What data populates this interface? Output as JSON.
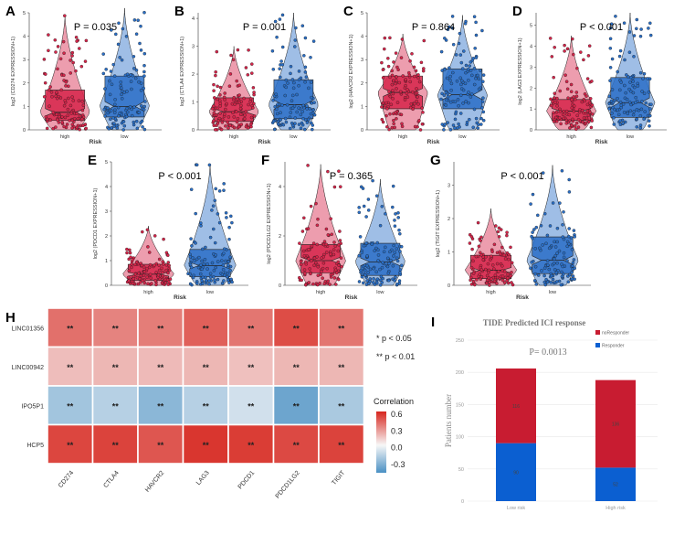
{
  "colors": {
    "high": "#d6254a",
    "low": "#2a6fc7",
    "resp": "#0b5fd1",
    "nonresp": "#c81c31"
  },
  "chart_data": [
    {
      "panel": "A",
      "type": "violin",
      "gene": "CD274",
      "ylabel": "log2 (CD274 EXPRESSION+1)",
      "xlabel": "Risk",
      "categories": [
        "high",
        "low"
      ],
      "pvalue": "P = 0.035",
      "ylim": [
        0,
        5
      ],
      "yticks": [
        "0",
        "1",
        "2",
        "3",
        "4",
        "5"
      ],
      "yticks_v": [
        0,
        1,
        2,
        3,
        4,
        5
      ],
      "stats": [
        {
          "q1": 0.4,
          "med": 0.75,
          "q3": 1.7,
          "max": 4.9
        },
        {
          "q1": 0.55,
          "med": 1.0,
          "q3": 2.3,
          "max": 5.2
        }
      ]
    },
    {
      "panel": "B",
      "type": "violin",
      "gene": "CTLA4",
      "ylabel": "log2 (CTLA4 EXPRESSION+1)",
      "xlabel": "Risk",
      "categories": [
        "high",
        "low"
      ],
      "pvalue": "P = 0.001",
      "ylim": [
        0,
        4.2
      ],
      "yticks": [
        "0",
        "1",
        "2",
        "3",
        "4"
      ],
      "yticks_v": [
        0,
        1,
        2,
        3,
        4
      ],
      "stats": [
        {
          "q1": 0.3,
          "med": 0.65,
          "q3": 1.15,
          "max": 3.0
        },
        {
          "q1": 0.4,
          "med": 0.9,
          "q3": 1.8,
          "max": 4.2
        }
      ]
    },
    {
      "panel": "C",
      "type": "violin",
      "gene": "HAVCR2",
      "ylabel": "log2 (HAVCR2 EXPRESSION+1)",
      "xlabel": "Risk",
      "categories": [
        "high",
        "low"
      ],
      "pvalue": "P = 0.864",
      "ylim": [
        0,
        5
      ],
      "yticks": [
        "0",
        "1",
        "2",
        "3",
        "4",
        "5"
      ],
      "yticks_v": [
        0,
        1,
        2,
        3,
        4,
        5
      ],
      "stats": [
        {
          "q1": 0.9,
          "med": 1.6,
          "q3": 2.3,
          "max": 4.1
        },
        {
          "q1": 0.9,
          "med": 1.5,
          "q3": 2.6,
          "max": 4.9
        }
      ]
    },
    {
      "panel": "D",
      "type": "violin",
      "gene": "LAG3",
      "ylabel": "log2 (LAG3 EXPRESSION+1)",
      "xlabel": "Risk",
      "categories": [
        "high",
        "low"
      ],
      "pvalue": "P < 0.001",
      "ylim": [
        0,
        5.6
      ],
      "yticks": [
        "0",
        "1",
        "2",
        "3",
        "4",
        "5"
      ],
      "yticks_v": [
        0,
        1,
        2,
        3,
        4,
        5
      ],
      "stats": [
        {
          "q1": 0.45,
          "med": 0.9,
          "q3": 1.45,
          "max": 4.5
        },
        {
          "q1": 0.6,
          "med": 1.3,
          "q3": 2.5,
          "max": 5.6
        }
      ]
    },
    {
      "panel": "E",
      "type": "violin",
      "gene": "PDCD1",
      "ylabel": "log2 (PDCD1 EXPRESSION+1)",
      "xlabel": "Risk",
      "categories": [
        "high",
        "low"
      ],
      "pvalue": "P < 0.001",
      "ylim": [
        0,
        5
      ],
      "yticks": [
        "0",
        "1",
        "2",
        "3",
        "4",
        "5"
      ],
      "yticks_v": [
        0,
        1,
        2,
        3,
        4,
        5
      ],
      "stats": [
        {
          "q1": 0.2,
          "med": 0.45,
          "q3": 0.85,
          "max": 2.4
        },
        {
          "q1": 0.35,
          "med": 0.8,
          "q3": 1.45,
          "max": 4.9
        }
      ]
    },
    {
      "panel": "F",
      "type": "violin",
      "gene": "PDCD1LG2",
      "ylabel": "log2 (PDCD1LG2 EXPRESSION+1)",
      "xlabel": "Risk",
      "categories": [
        "high",
        "low"
      ],
      "pvalue": "P = 0.365",
      "ylim": [
        0,
        5
      ],
      "yticks": [
        "0",
        "2",
        "4"
      ],
      "yticks_v": [
        0,
        2,
        4
      ],
      "stats": [
        {
          "q1": 0.5,
          "med": 1.0,
          "q3": 1.65,
          "max": 4.9
        },
        {
          "q1": 0.4,
          "med": 0.95,
          "q3": 1.7,
          "max": 4.3
        }
      ]
    },
    {
      "panel": "G",
      "type": "violin",
      "gene": "TIGIT",
      "ylabel": "log2 (TIGIT EXPRESSION+1)",
      "xlabel": "Risk",
      "categories": [
        "high",
        "low"
      ],
      "pvalue": "P < 0.001",
      "ylim": [
        0,
        3.7
      ],
      "yticks": [
        "0",
        "1",
        "2",
        "3"
      ],
      "yticks_v": [
        0,
        1,
        2,
        3
      ],
      "stats": [
        {
          "q1": 0.2,
          "med": 0.45,
          "q3": 0.9,
          "max": 2.3
        },
        {
          "q1": 0.35,
          "med": 0.75,
          "q3": 1.45,
          "max": 3.6
        }
      ]
    },
    {
      "panel": "H",
      "type": "heatmap",
      "rows": [
        "LINC01356",
        "LINC00942",
        "IPO5P1",
        "HCP5"
      ],
      "cols": [
        "CD274",
        "CTLA4",
        "HAVCR2",
        "LAG3",
        "PDCD1",
        "PDCD1LG2",
        "TIGIT"
      ],
      "values": [
        [
          0.42,
          0.36,
          0.38,
          0.47,
          0.4,
          0.53,
          0.4
        ],
        [
          0.18,
          0.2,
          0.19,
          0.2,
          0.17,
          0.2,
          0.2
        ],
        [
          -0.22,
          -0.17,
          -0.28,
          -0.17,
          -0.1,
          -0.36,
          -0.2
        ],
        [
          0.55,
          0.56,
          0.5,
          0.6,
          0.58,
          0.54,
          0.56
        ]
      ],
      "labels": [
        [
          "**",
          "**",
          "**",
          "**",
          "**",
          "**",
          "**"
        ],
        [
          "**",
          "**",
          "**",
          "**",
          "**",
          "**",
          "**"
        ],
        [
          "**",
          "**",
          "**",
          "**",
          "**",
          "**",
          "**"
        ],
        [
          "**",
          "**",
          "**",
          "**",
          "**",
          "**",
          "**"
        ]
      ],
      "legend_title": "Correlation",
      "legend_ticks": [
        "0.6",
        "0.3",
        "0.0",
        "-0.3"
      ],
      "legend_ticks_v": [
        0.6,
        0.3,
        0.0,
        -0.3
      ],
      "vmin": -0.45,
      "vmax": 0.65,
      "sig_notes": [
        "* p < 0.05",
        "** p < 0.01"
      ]
    },
    {
      "panel": "I",
      "type": "bar",
      "stacked": true,
      "title": "TIDE Predicted ICI response",
      "pvalue": "P= 0.0013",
      "categories": [
        "Low risk",
        "High risk"
      ],
      "ylabel": "Patients number",
      "ylim": [
        0,
        250
      ],
      "yticks": [
        "0",
        "50",
        "100",
        "150",
        "200",
        "250"
      ],
      "yticks_v": [
        0,
        50,
        100,
        150,
        200,
        250
      ],
      "series": [
        {
          "name": "Responder",
          "values": [
            90,
            52
          ],
          "labels": [
            "90",
            "52"
          ]
        },
        {
          "name": "noResponder",
          "values": [
            116,
            136
          ],
          "labels": [
            "116",
            "136"
          ]
        }
      ]
    }
  ]
}
